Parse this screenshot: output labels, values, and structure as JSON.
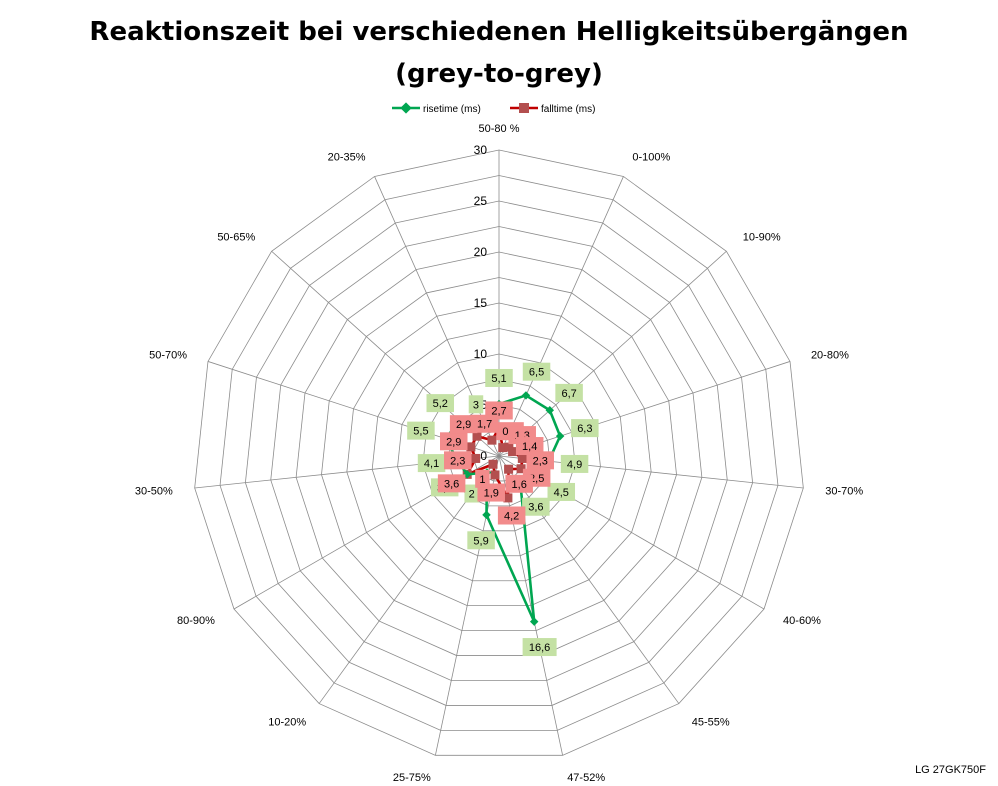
{
  "chart_data": {
    "type": "radar",
    "title": "Reaktionszeit bei verschiedenen Helligkeitsübergängen",
    "subtitle": "(grey-to-grey)",
    "categories": [
      "50-80 %",
      "0-100%",
      "10-90%",
      "20-80%",
      "30-70%",
      "40-60%",
      "45-55%",
      "47-52%",
      "25-75%",
      "10-20%",
      "80-90%",
      "30-50%",
      "50-70%",
      "50-65%",
      "20-35%"
    ],
    "rlim": [
      0,
      30
    ],
    "ticks": [
      0,
      5,
      10,
      15,
      20,
      25,
      30
    ],
    "grid": true,
    "legend_position": "top",
    "series": [
      {
        "name": "risetime (ms)",
        "color": "#00a651",
        "label_bg": "#c4e1a4",
        "values": [
          5.1,
          6.5,
          6.7,
          6.3,
          4.9,
          4.5,
          3.6,
          16.6,
          5.9,
          2,
          3.6,
          4.1,
          5.5,
          5.2,
          3
        ],
        "labels": [
          "5,1",
          "6,5",
          "6,7",
          "6,3",
          "4,9",
          "4,5",
          "3,6",
          "16,6",
          "5,9",
          "2",
          "3,6",
          "4,1",
          "5,5",
          "5,2",
          "3"
        ]
      },
      {
        "name": "falltime (ms)",
        "color": "#c00000",
        "label_bg": "#f28b8b",
        "values": [
          2.7,
          0.9,
          1.3,
          1.4,
          2.3,
          2.5,
          1.6,
          4.2,
          1.9,
          1,
          3.6,
          2.3,
          2.9,
          2.9,
          1.7
        ],
        "labels": [
          "2,7",
          "0,9",
          "1,3",
          "1,4",
          "2,3",
          "2,5",
          "1,6",
          "4,2",
          "1,9",
          "1",
          "3,6",
          "2,3",
          "2,9",
          "2,9",
          "1,7"
        ]
      }
    ]
  },
  "footer": "LG 27GK750F"
}
